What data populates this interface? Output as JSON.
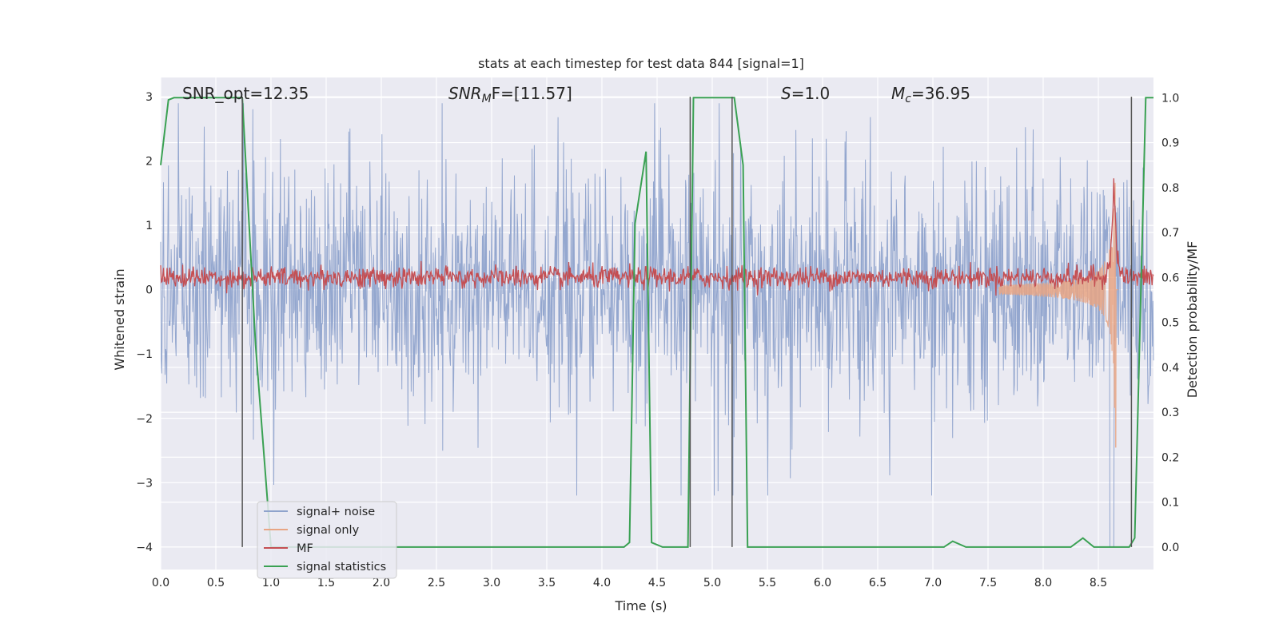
{
  "chart_data": {
    "type": "line",
    "title": "stats at each timestep for test data 844 [signal=1]",
    "xlabel": "Time (s)",
    "ylabel": "Whitened strain",
    "y2label": "Detection probability/MF",
    "xlim": [
      0.0,
      9.0
    ],
    "ylim": [
      -4.35,
      3.3
    ],
    "y2lim": [
      -0.05,
      1.045
    ],
    "xticks": [
      "0.0",
      "0.5",
      "1.0",
      "1.5",
      "2.0",
      "2.5",
      "3.0",
      "3.5",
      "4.0",
      "4.5",
      "5.0",
      "5.5",
      "6.0",
      "6.5",
      "7.0",
      "7.5",
      "8.0",
      "8.5"
    ],
    "yticks": [
      "3",
      "2",
      "1",
      "0",
      "−1",
      "−2",
      "−3",
      "−4"
    ],
    "y2ticks": [
      "1.0",
      "0.9",
      "0.8",
      "0.7",
      "0.6",
      "0.5",
      "0.4",
      "0.3",
      "0.2",
      "0.1",
      "0.0"
    ],
    "grid": true,
    "legend_position": "lower-left",
    "annotations": [
      {
        "text": "SNR_opt=12.35",
        "x": 0.2
      },
      {
        "text": "SNR_MF=[11.57]",
        "x": 2.6
      },
      {
        "text": "S=1.0",
        "x": 5.6
      },
      {
        "text": "M_c=36.95",
        "x": 6.6
      }
    ],
    "series": [
      {
        "name": "signal+ noise",
        "color": "#8fa3cc",
        "axis": "left",
        "note": "dense noise, roughly within -2.5..2.5 with spikes to -4.0 and 2.8"
      },
      {
        "name": "signal only",
        "color": "#e8a584",
        "axis": "left",
        "note": "chirp growing near t=8.1..8.65, peak about 2.6"
      },
      {
        "name": "MF",
        "color": "#c44e52",
        "axis": "right",
        "note": "hovers near 0.60, spike to ~0.83 at t=8.64"
      },
      {
        "name": "signal statistics",
        "color": "#3aa153",
        "axis": "right",
        "x": [
          0.0,
          0.07,
          0.12,
          0.7,
          0.74,
          0.86,
          1.0,
          4.2,
          4.25,
          4.3,
          4.4,
          4.45,
          4.55,
          4.65,
          4.78,
          4.83,
          5.2,
          5.28,
          5.32,
          7.1,
          7.18,
          7.3,
          8.25,
          8.36,
          8.46,
          8.78,
          8.83,
          8.93,
          9.0
        ],
        "y": [
          0.85,
          0.995,
          1.0,
          1.0,
          1.0,
          0.45,
          0.0,
          0.0,
          0.01,
          0.72,
          0.88,
          0.01,
          0.0,
          0.0,
          0.0,
          1.0,
          1.0,
          0.85,
          0.0,
          0.0,
          0.013,
          0.0,
          0.0,
          0.02,
          0.0,
          0.0,
          0.02,
          1.0,
          1.0
        ]
      },
      {
        "name": "vertical markers",
        "color": "#555555",
        "axis": "left",
        "x": [
          0.74,
          4.8,
          5.18,
          8.8
        ],
        "y_from": -4.0,
        "y_to": 3.0
      }
    ]
  },
  "legend": {
    "items": [
      {
        "label": "signal+ noise",
        "color": "#8fa3cc"
      },
      {
        "label": "signal only",
        "color": "#e8a584"
      },
      {
        "label": "MF",
        "color": "#c44e52"
      },
      {
        "label": "signal statistics",
        "color": "#3aa153"
      }
    ]
  },
  "annot_parts": {
    "snr_opt": "SNR_opt=12.35",
    "snr_mf_a": "SNR",
    "snr_mf_sub": "M",
    "snr_mf_b": "F=[11.57]",
    "s_a": "S",
    "s_b": "=1.0",
    "mc_a": "M",
    "mc_sub": "c",
    "mc_b": "=36.95"
  },
  "colors": {
    "background": "#eaeaf2",
    "grid": "#ffffff"
  }
}
